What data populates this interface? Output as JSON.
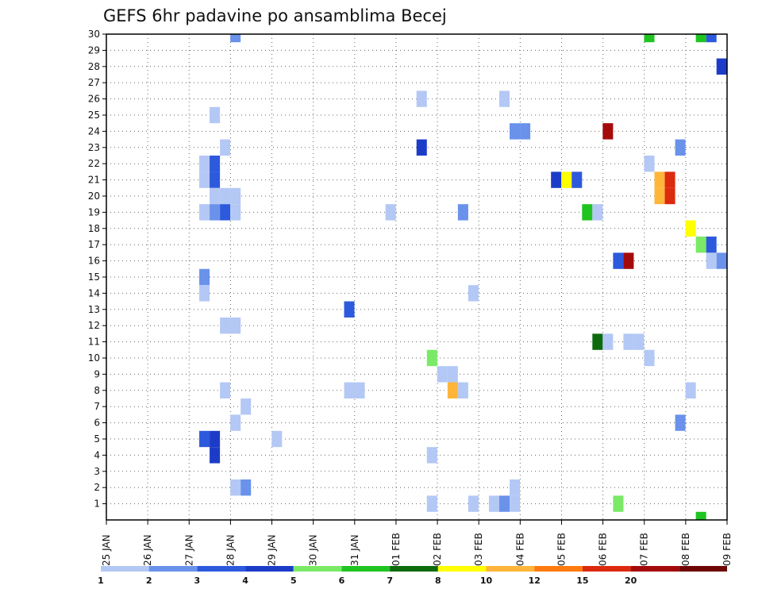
{
  "chart_data": {
    "type": "heatmap",
    "title": "GEFS 6hr padavine po ansamblima Becej",
    "xlabel": "",
    "ylabel": "",
    "x_tick_labels": [
      "25 JAN",
      "26 JAN",
      "27 JAN",
      "28 JAN",
      "29 JAN",
      "30 JAN",
      "31 JAN",
      "01 FEB",
      "02 FEB",
      "03 FEB",
      "04 FEB",
      "05 FEB",
      "06 FEB",
      "07 FEB",
      "08 FEB",
      "09 FEB"
    ],
    "y_range": [
      1,
      30
    ],
    "xlim_days": [
      0,
      15
    ],
    "grid": true,
    "legend": {
      "placement": "bottom",
      "colors": [
        "#b4c8f5",
        "#6a92eb",
        "#2d59dc",
        "#1c3cc8",
        "#7aea66",
        "#1fc421",
        "#0d6b0e",
        "#ffff00",
        "#ffb43a",
        "#ff7a0e",
        "#dc2a0e",
        "#a50a0a",
        "#6e0606"
      ],
      "labels": [
        "1",
        "2",
        "3",
        "4",
        "5",
        "6",
        "7",
        "8",
        "10",
        "12",
        "15",
        "20"
      ]
    },
    "points": [
      {
        "member": 30,
        "day": 3.12,
        "value": 2
      },
      {
        "member": 30,
        "day": 13.12,
        "value": 6
      },
      {
        "member": 30,
        "day": 14.37,
        "value": 6
      },
      {
        "member": 30,
        "day": 14.62,
        "value": 3
      },
      {
        "member": 28,
        "day": 14.87,
        "value": 4
      },
      {
        "member": 26,
        "day": 7.62,
        "value": 1
      },
      {
        "member": 26,
        "day": 9.62,
        "value": 1
      },
      {
        "member": 25,
        "day": 2.62,
        "value": 1
      },
      {
        "member": 24,
        "day": 9.87,
        "value": 2
      },
      {
        "member": 24,
        "day": 10.12,
        "value": 2
      },
      {
        "member": 24,
        "day": 12.12,
        "value": 20
      },
      {
        "member": 23,
        "day": 2.87,
        "value": 1
      },
      {
        "member": 23,
        "day": 7.62,
        "value": 4
      },
      {
        "member": 23,
        "day": 13.87,
        "value": 2
      },
      {
        "member": 22,
        "day": 2.37,
        "value": 1
      },
      {
        "member": 22,
        "day": 2.62,
        "value": 3
      },
      {
        "member": 22,
        "day": 13.12,
        "value": 1
      },
      {
        "member": 21,
        "day": 2.37,
        "value": 1
      },
      {
        "member": 21,
        "day": 2.62,
        "value": 3
      },
      {
        "member": 21,
        "day": 10.87,
        "value": 4
      },
      {
        "member": 21,
        "day": 11.12,
        "value": 8
      },
      {
        "member": 21,
        "day": 11.37,
        "value": 3
      },
      {
        "member": 21,
        "day": 13.37,
        "value": 10
      },
      {
        "member": 21,
        "day": 13.62,
        "value": 15
      },
      {
        "member": 20,
        "day": 2.62,
        "value": 1
      },
      {
        "member": 20,
        "day": 2.87,
        "value": 1
      },
      {
        "member": 20,
        "day": 3.12,
        "value": 1
      },
      {
        "member": 20,
        "day": 13.37,
        "value": 10
      },
      {
        "member": 20,
        "day": 13.62,
        "value": 15
      },
      {
        "member": 19,
        "day": 2.37,
        "value": 1
      },
      {
        "member": 19,
        "day": 2.62,
        "value": 2
      },
      {
        "member": 19,
        "day": 2.87,
        "value": 3
      },
      {
        "member": 19,
        "day": 3.12,
        "value": 1
      },
      {
        "member": 19,
        "day": 6.87,
        "value": 1
      },
      {
        "member": 19,
        "day": 8.62,
        "value": 2
      },
      {
        "member": 19,
        "day": 11.62,
        "value": 6
      },
      {
        "member": 19,
        "day": 11.87,
        "value": 1
      },
      {
        "member": 18,
        "day": 14.12,
        "value": 8
      },
      {
        "member": 17,
        "day": 14.37,
        "value": 5
      },
      {
        "member": 17,
        "day": 14.62,
        "value": 3
      },
      {
        "member": 16,
        "day": 12.37,
        "value": 3
      },
      {
        "member": 16,
        "day": 12.62,
        "value": 20
      },
      {
        "member": 16,
        "day": 14.62,
        "value": 1
      },
      {
        "member": 16,
        "day": 14.87,
        "value": 2
      },
      {
        "member": 15,
        "day": 2.37,
        "value": 2
      },
      {
        "member": 14,
        "day": 2.37,
        "value": 1
      },
      {
        "member": 14,
        "day": 8.87,
        "value": 1
      },
      {
        "member": 13,
        "day": 5.87,
        "value": 3
      },
      {
        "member": 12,
        "day": 2.87,
        "value": 1
      },
      {
        "member": 12,
        "day": 3.12,
        "value": 1
      },
      {
        "member": 11,
        "day": 11.87,
        "value": 7
      },
      {
        "member": 11,
        "day": 12.12,
        "value": 1
      },
      {
        "member": 11,
        "day": 12.62,
        "value": 1
      },
      {
        "member": 11,
        "day": 12.87,
        "value": 1
      },
      {
        "member": 10,
        "day": 7.87,
        "value": 5
      },
      {
        "member": 10,
        "day": 13.12,
        "value": 1
      },
      {
        "member": 9,
        "day": 8.12,
        "value": 1
      },
      {
        "member": 9,
        "day": 8.37,
        "value": 1
      },
      {
        "member": 8,
        "day": 2.87,
        "value": 1
      },
      {
        "member": 8,
        "day": 5.87,
        "value": 1
      },
      {
        "member": 8,
        "day": 6.12,
        "value": 1
      },
      {
        "member": 8,
        "day": 8.37,
        "value": 10
      },
      {
        "member": 8,
        "day": 8.62,
        "value": 1
      },
      {
        "member": 8,
        "day": 14.12,
        "value": 1
      },
      {
        "member": 7,
        "day": 3.37,
        "value": 1
      },
      {
        "member": 6,
        "day": 3.12,
        "value": 1
      },
      {
        "member": 6,
        "day": 13.87,
        "value": 2
      },
      {
        "member": 5,
        "day": 2.37,
        "value": 3
      },
      {
        "member": 5,
        "day": 2.62,
        "value": 4
      },
      {
        "member": 5,
        "day": 4.12,
        "value": 1
      },
      {
        "member": 4,
        "day": 2.62,
        "value": 4
      },
      {
        "member": 4,
        "day": 7.87,
        "value": 1
      },
      {
        "member": 2,
        "day": 3.12,
        "value": 1
      },
      {
        "member": 2,
        "day": 3.37,
        "value": 2
      },
      {
        "member": 2,
        "day": 9.87,
        "value": 1
      },
      {
        "member": 1,
        "day": 7.87,
        "value": 1
      },
      {
        "member": 1,
        "day": 8.87,
        "value": 1
      },
      {
        "member": 1,
        "day": 9.37,
        "value": 1
      },
      {
        "member": 1,
        "day": 9.62,
        "value": 2
      },
      {
        "member": 1,
        "day": 9.87,
        "value": 1
      },
      {
        "member": 1,
        "day": 12.37,
        "value": 5
      },
      {
        "member": 0,
        "day": 14.37,
        "value": 6
      }
    ]
  }
}
